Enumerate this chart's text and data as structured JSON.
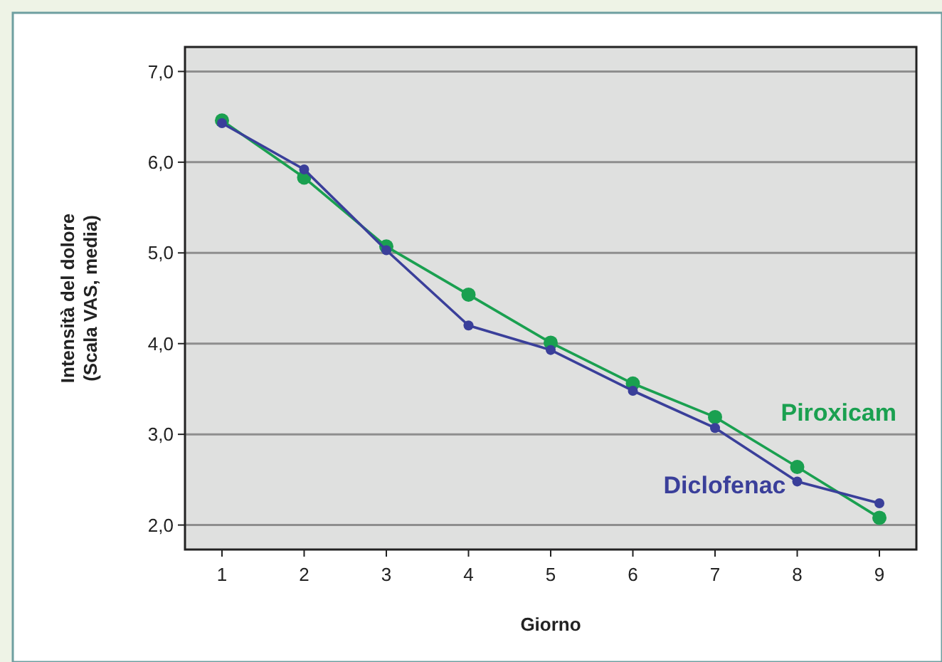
{
  "chart_data": {
    "type": "line",
    "xlabel": "Giorno",
    "ylabel": "Intensità del dolore\n(Scala VAS, media)",
    "x": [
      1,
      2,
      3,
      4,
      5,
      6,
      7,
      8,
      9
    ],
    "series": [
      {
        "name": "Piroxicam",
        "color": "#1aa050",
        "values": [
          6.46,
          5.83,
          5.07,
          4.54,
          4.01,
          3.56,
          3.19,
          2.64,
          2.08
        ]
      },
      {
        "name": "Diclofenac",
        "color": "#3a3f9a",
        "values": [
          6.43,
          5.92,
          5.03,
          4.2,
          3.93,
          3.48,
          3.07,
          2.48,
          2.24
        ]
      }
    ],
    "xlim": [
      0.55,
      9.45
    ],
    "xticks": [
      1,
      2,
      3,
      4,
      5,
      6,
      7,
      8,
      9
    ],
    "ylim": [
      1.73,
      7.27
    ],
    "yticks": [
      {
        "value": 2,
        "label": "2,0"
      },
      {
        "value": 3,
        "label": "3,0"
      },
      {
        "value": 4,
        "label": "4,0"
      },
      {
        "value": 5,
        "label": "5,0"
      },
      {
        "value": 6,
        "label": "6,0"
      },
      {
        "value": 7,
        "label": "7,0"
      }
    ],
    "grid": "y",
    "marker": "circle",
    "line_style": "solid"
  }
}
